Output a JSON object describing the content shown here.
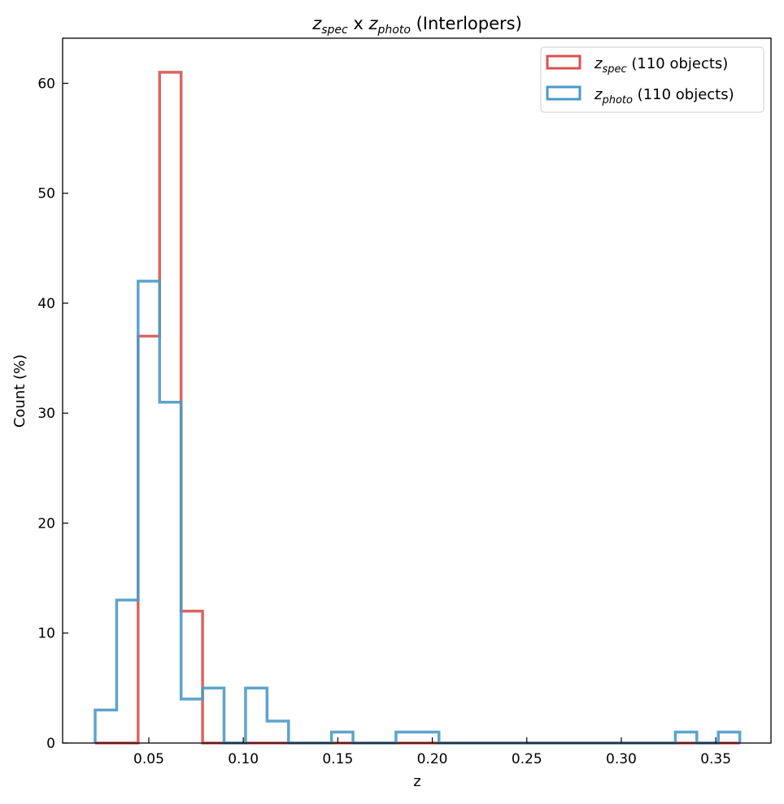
{
  "chart_data": {
    "type": "histogram-step",
    "title": {
      "main1": "z",
      "sub1": "spec",
      "mid": " x ",
      "main2": "z",
      "sub2": "photo",
      "tail": " (Interlopers)"
    },
    "xlabel": "z",
    "ylabel": "Count (%)",
    "xlim": [
      0.0044,
      0.3792
    ],
    "ylim": [
      0,
      64.1
    ],
    "xticks": [
      0.05,
      0.1,
      0.15,
      0.2,
      0.25,
      0.3,
      0.35
    ],
    "xtick_labels": [
      "0.05",
      "0.10",
      "0.15",
      "0.20",
      "0.25",
      "0.30",
      "0.35"
    ],
    "yticks": [
      0,
      10,
      20,
      30,
      40,
      50,
      60
    ],
    "ytick_labels": [
      "0",
      "10",
      "20",
      "30",
      "40",
      "50",
      "60"
    ],
    "bin_start": 0.0216,
    "bin_width": 0.01137,
    "series": [
      {
        "name": "z_spec",
        "label_main": "z",
        "label_sub": "spec",
        "label_tail": " (110 objects)",
        "color": "#d9534f",
        "values": [
          0,
          0,
          37,
          61,
          12,
          0,
          0,
          0,
          0,
          0,
          0,
          0,
          0,
          0,
          0,
          0,
          0,
          0,
          0,
          0,
          0,
          0,
          0,
          0,
          0,
          0,
          0,
          0,
          0,
          0
        ]
      },
      {
        "name": "z_photo",
        "label_main": "z",
        "label_sub": "photo",
        "label_tail": " (110 objects)",
        "color": "#4a9ac7",
        "values": [
          3,
          13,
          42,
          31,
          4,
          5,
          0,
          5,
          2,
          0,
          0,
          1,
          0,
          0,
          1,
          1,
          0,
          0,
          0,
          0,
          0,
          0,
          0,
          0,
          0,
          0,
          0,
          1,
          0,
          1
        ]
      }
    ],
    "legend_position": "top-right",
    "grid": false
  }
}
